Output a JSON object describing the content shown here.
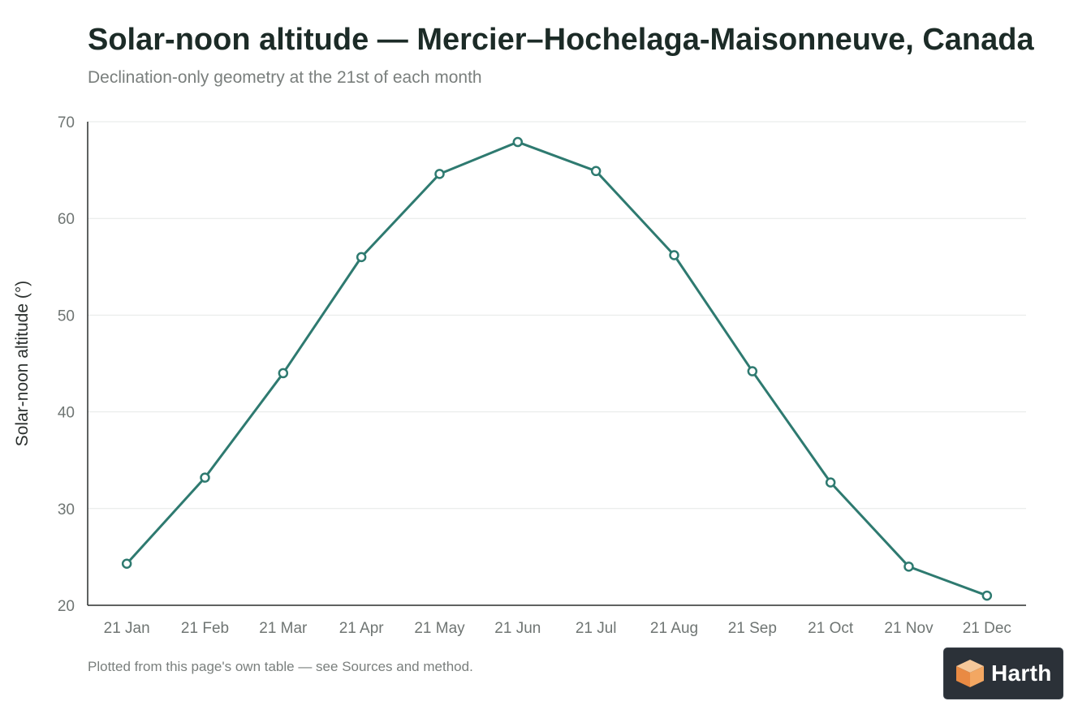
{
  "chart_data": {
    "type": "line",
    "title": "Solar-noon altitude — Mercier–Hochelaga-Maisonneuve, Canada",
    "subtitle": "Declination-only geometry at the 21st of each month",
    "xlabel": "",
    "ylabel": "Solar-noon altitude (°)",
    "ylim": [
      20,
      70
    ],
    "yticks": [
      20,
      30,
      40,
      50,
      60,
      70
    ],
    "grid": true,
    "categories": [
      "21 Jan",
      "21 Feb",
      "21 Mar",
      "21 Apr",
      "21 May",
      "21 Jun",
      "21 Jul",
      "21 Aug",
      "21 Sep",
      "21 Oct",
      "21 Nov",
      "21 Dec"
    ],
    "series": [
      {
        "values": [
          24.3,
          33.2,
          44.0,
          56.0,
          64.6,
          67.9,
          64.9,
          56.2,
          44.2,
          32.7,
          24.0,
          21.0
        ]
      }
    ],
    "colors": {
      "line": "#2e7a70",
      "marker_fill": "#ffffff"
    }
  },
  "footnote": "Plotted from this page's own table — see Sources and method.",
  "logo": {
    "text": "Harth",
    "icon": "cube-logo-icon"
  }
}
